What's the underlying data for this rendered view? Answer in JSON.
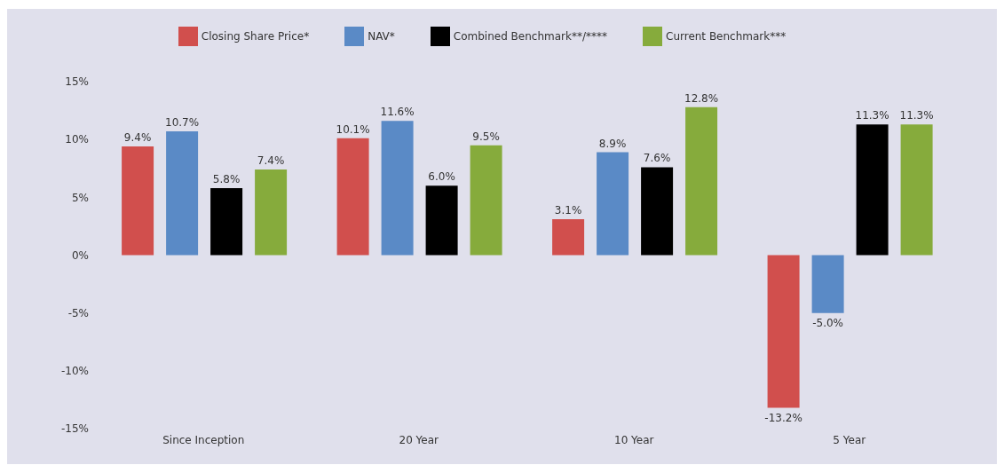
{
  "chart_data": {
    "type": "bar",
    "categories": [
      "Since Inception",
      "20 Year",
      "10 Year",
      "5 Year"
    ],
    "series": [
      {
        "name": "Closing Share Price*",
        "color": "#d14f4d",
        "values": [
          9.4,
          10.1,
          3.1,
          -13.2
        ],
        "value_labels": [
          "9.4%",
          "10.1%",
          "3.1%",
          "-13.2%"
        ]
      },
      {
        "name": "NAV*",
        "color": "#5a8ac6",
        "values": [
          10.7,
          11.6,
          8.9,
          -5.0
        ],
        "value_labels": [
          "10.7%",
          "11.6%",
          "8.9%",
          "-5.0%"
        ]
      },
      {
        "name": "Combined Benchmark**/****",
        "color": "#000000",
        "values": [
          5.8,
          6.0,
          7.6,
          11.3
        ],
        "value_labels": [
          "5.8%",
          "6.0%",
          "7.6%",
          "11.3%"
        ]
      },
      {
        "name": "Current Benchmark***",
        "color": "#86ab3c",
        "values": [
          7.4,
          9.5,
          12.8,
          11.3
        ],
        "value_labels": [
          "7.4%",
          "9.5%",
          "12.8%",
          "11.3%"
        ]
      }
    ],
    "ylim": [
      -15,
      15
    ],
    "yticks": [
      {
        "value": -15,
        "label": "-15%"
      },
      {
        "value": -10,
        "label": "-10%"
      },
      {
        "value": -5,
        "label": "-5%"
      },
      {
        "value": 0,
        "label": "0%"
      },
      {
        "value": 5,
        "label": "5%"
      },
      {
        "value": 10,
        "label": "10%"
      },
      {
        "value": 15,
        "label": "15%"
      }
    ],
    "grid": false,
    "legend": "top"
  }
}
